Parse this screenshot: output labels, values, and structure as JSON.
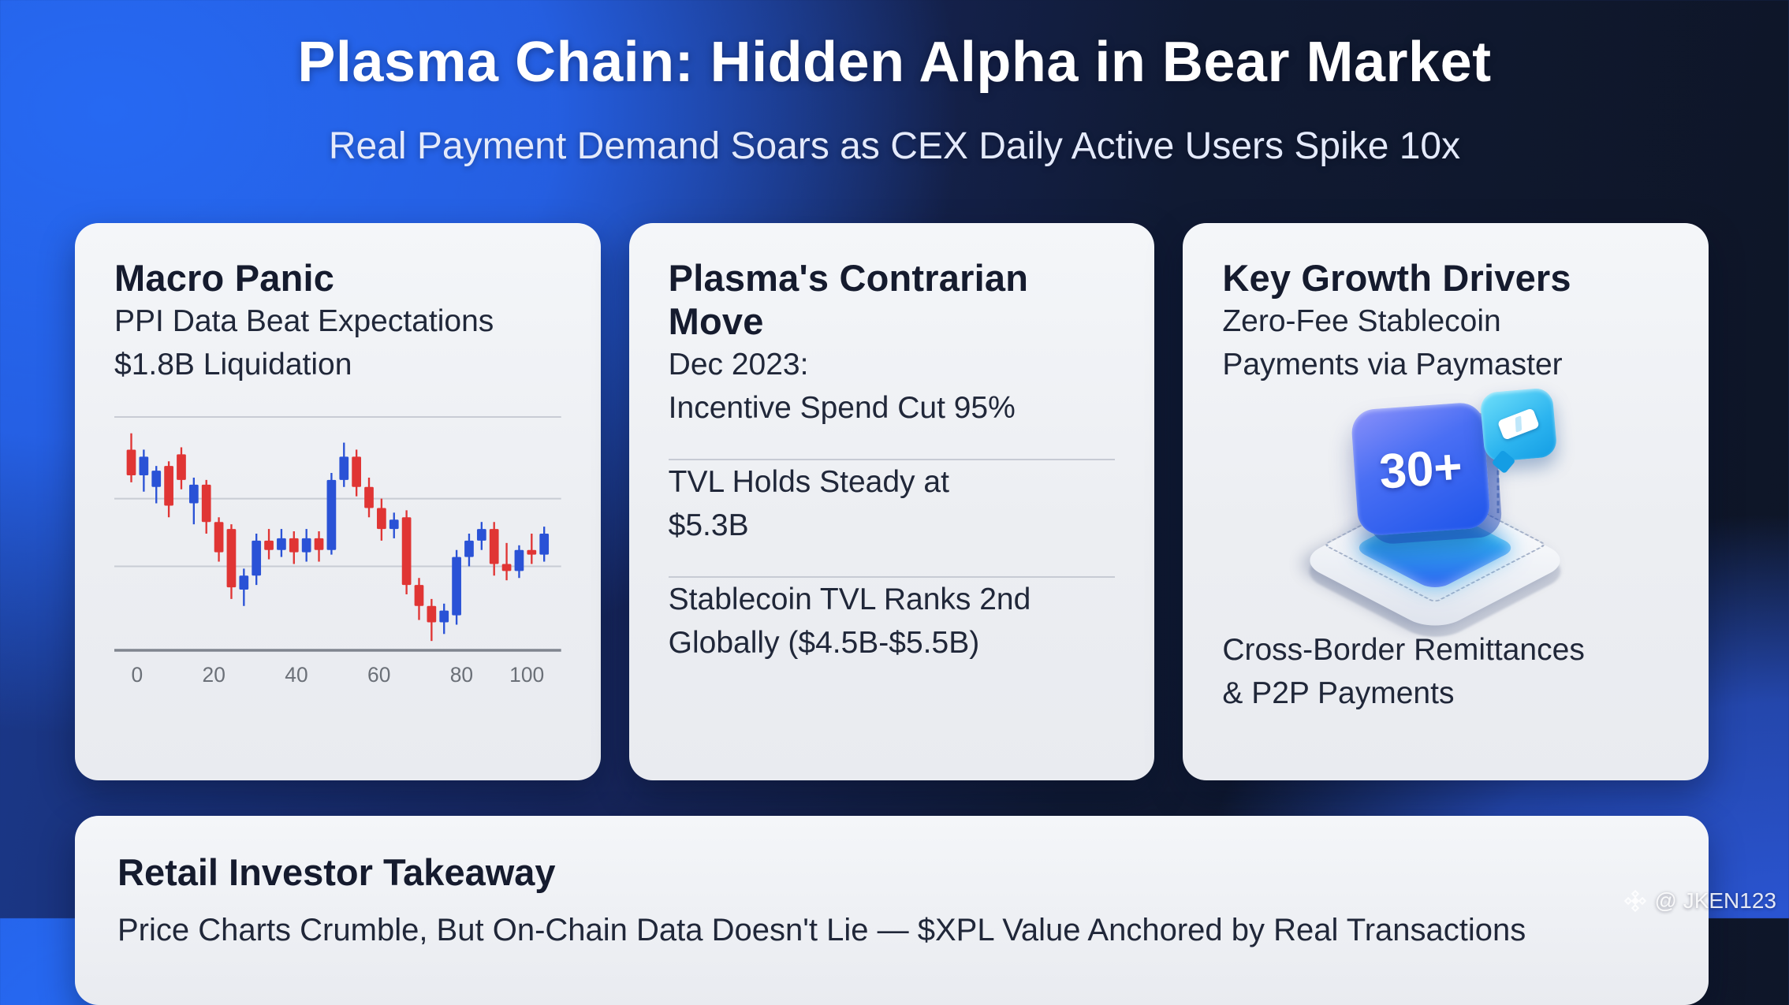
{
  "header": {
    "title": "Plasma Chain: Hidden Alpha in Bear Market",
    "subtitle": "Real Payment Demand Soars as CEX Daily Active Users Spike 10x"
  },
  "cards": {
    "macro": {
      "title": "Macro Panic",
      "line1": "PPI Data Beat Expectations",
      "line2": "$1.8B Liquidation"
    },
    "contrarian": {
      "title": "Plasma's Contrarian Move",
      "item1_line1": "Dec 2023:",
      "item1_line2": "Incentive Spend Cut 95%",
      "item2_line1": "TVL Holds Steady at",
      "item2_line2": "$5.3B",
      "item3_line1": "Stablecoin TVL Ranks 2nd",
      "item3_line2": "Globally ($4.5B-$5.5B)"
    },
    "growth": {
      "title": "Key Growth Drivers",
      "line1": "Zero-Fee Stablecoin",
      "line2": "Payments via Paymaster",
      "badge": "30+",
      "line3": "Cross-Border Remittances",
      "line4": "& P2P Payments"
    },
    "takeaway": {
      "title": "Retail Investor Takeaway",
      "body": "Price Charts Crumble, But On-Chain Data Doesn't Lie — $XPL Value Anchored by Real Transactions"
    }
  },
  "watermark": {
    "logo_icon": "binance-diamond-icon",
    "handle": "@ JKEN123"
  },
  "chart_data": {
    "type": "candlestick",
    "title": "",
    "xlabel": "",
    "ylabel": "",
    "x_ticks": [
      0,
      20,
      40,
      60,
      80,
      100
    ],
    "x_range": [
      0,
      100
    ],
    "value_range": [
      0,
      100
    ],
    "gridline_values": [
      100,
      65,
      36
    ],
    "grid": true,
    "up_color": "#2a52d6",
    "down_color": "#e03534",
    "axis_color": "#80858f",
    "gridline_color": "#c8ccd4",
    "tick_label_color": "#6b7078",
    "candles_ohlc": [
      [
        86,
        93,
        72,
        75
      ],
      [
        75,
        86,
        68,
        83
      ],
      [
        70,
        79,
        63,
        77
      ],
      [
        79,
        81,
        57,
        62
      ],
      [
        84,
        87,
        69,
        73
      ],
      [
        63,
        74,
        54,
        71
      ],
      [
        71,
        73,
        50,
        55
      ],
      [
        55,
        57,
        38,
        42
      ],
      [
        52,
        54,
        22,
        27
      ],
      [
        26,
        35,
        19,
        32
      ],
      [
        32,
        50,
        28,
        47
      ],
      [
        47,
        52,
        39,
        43
      ],
      [
        43,
        52,
        40,
        48
      ],
      [
        48,
        51,
        37,
        42
      ],
      [
        42,
        52,
        38,
        48
      ],
      [
        48,
        51,
        38,
        43
      ],
      [
        43,
        76,
        41,
        73
      ],
      [
        73,
        89,
        70,
        83
      ],
      [
        83,
        86,
        66,
        70
      ],
      [
        70,
        74,
        57,
        61
      ],
      [
        61,
        65,
        47,
        52
      ],
      [
        52,
        59,
        48,
        56
      ],
      [
        57,
        60,
        24,
        28
      ],
      [
        28,
        31,
        13,
        19
      ],
      [
        19,
        22,
        4,
        12
      ],
      [
        12,
        20,
        7,
        17
      ],
      [
        15,
        43,
        11,
        40
      ],
      [
        40,
        50,
        36,
        47
      ],
      [
        47,
        55,
        43,
        52
      ],
      [
        52,
        55,
        32,
        37
      ],
      [
        37,
        46,
        30,
        34
      ],
      [
        34,
        45,
        31,
        43
      ],
      [
        43,
        50,
        37,
        41
      ],
      [
        41,
        53,
        38,
        50
      ]
    ]
  }
}
